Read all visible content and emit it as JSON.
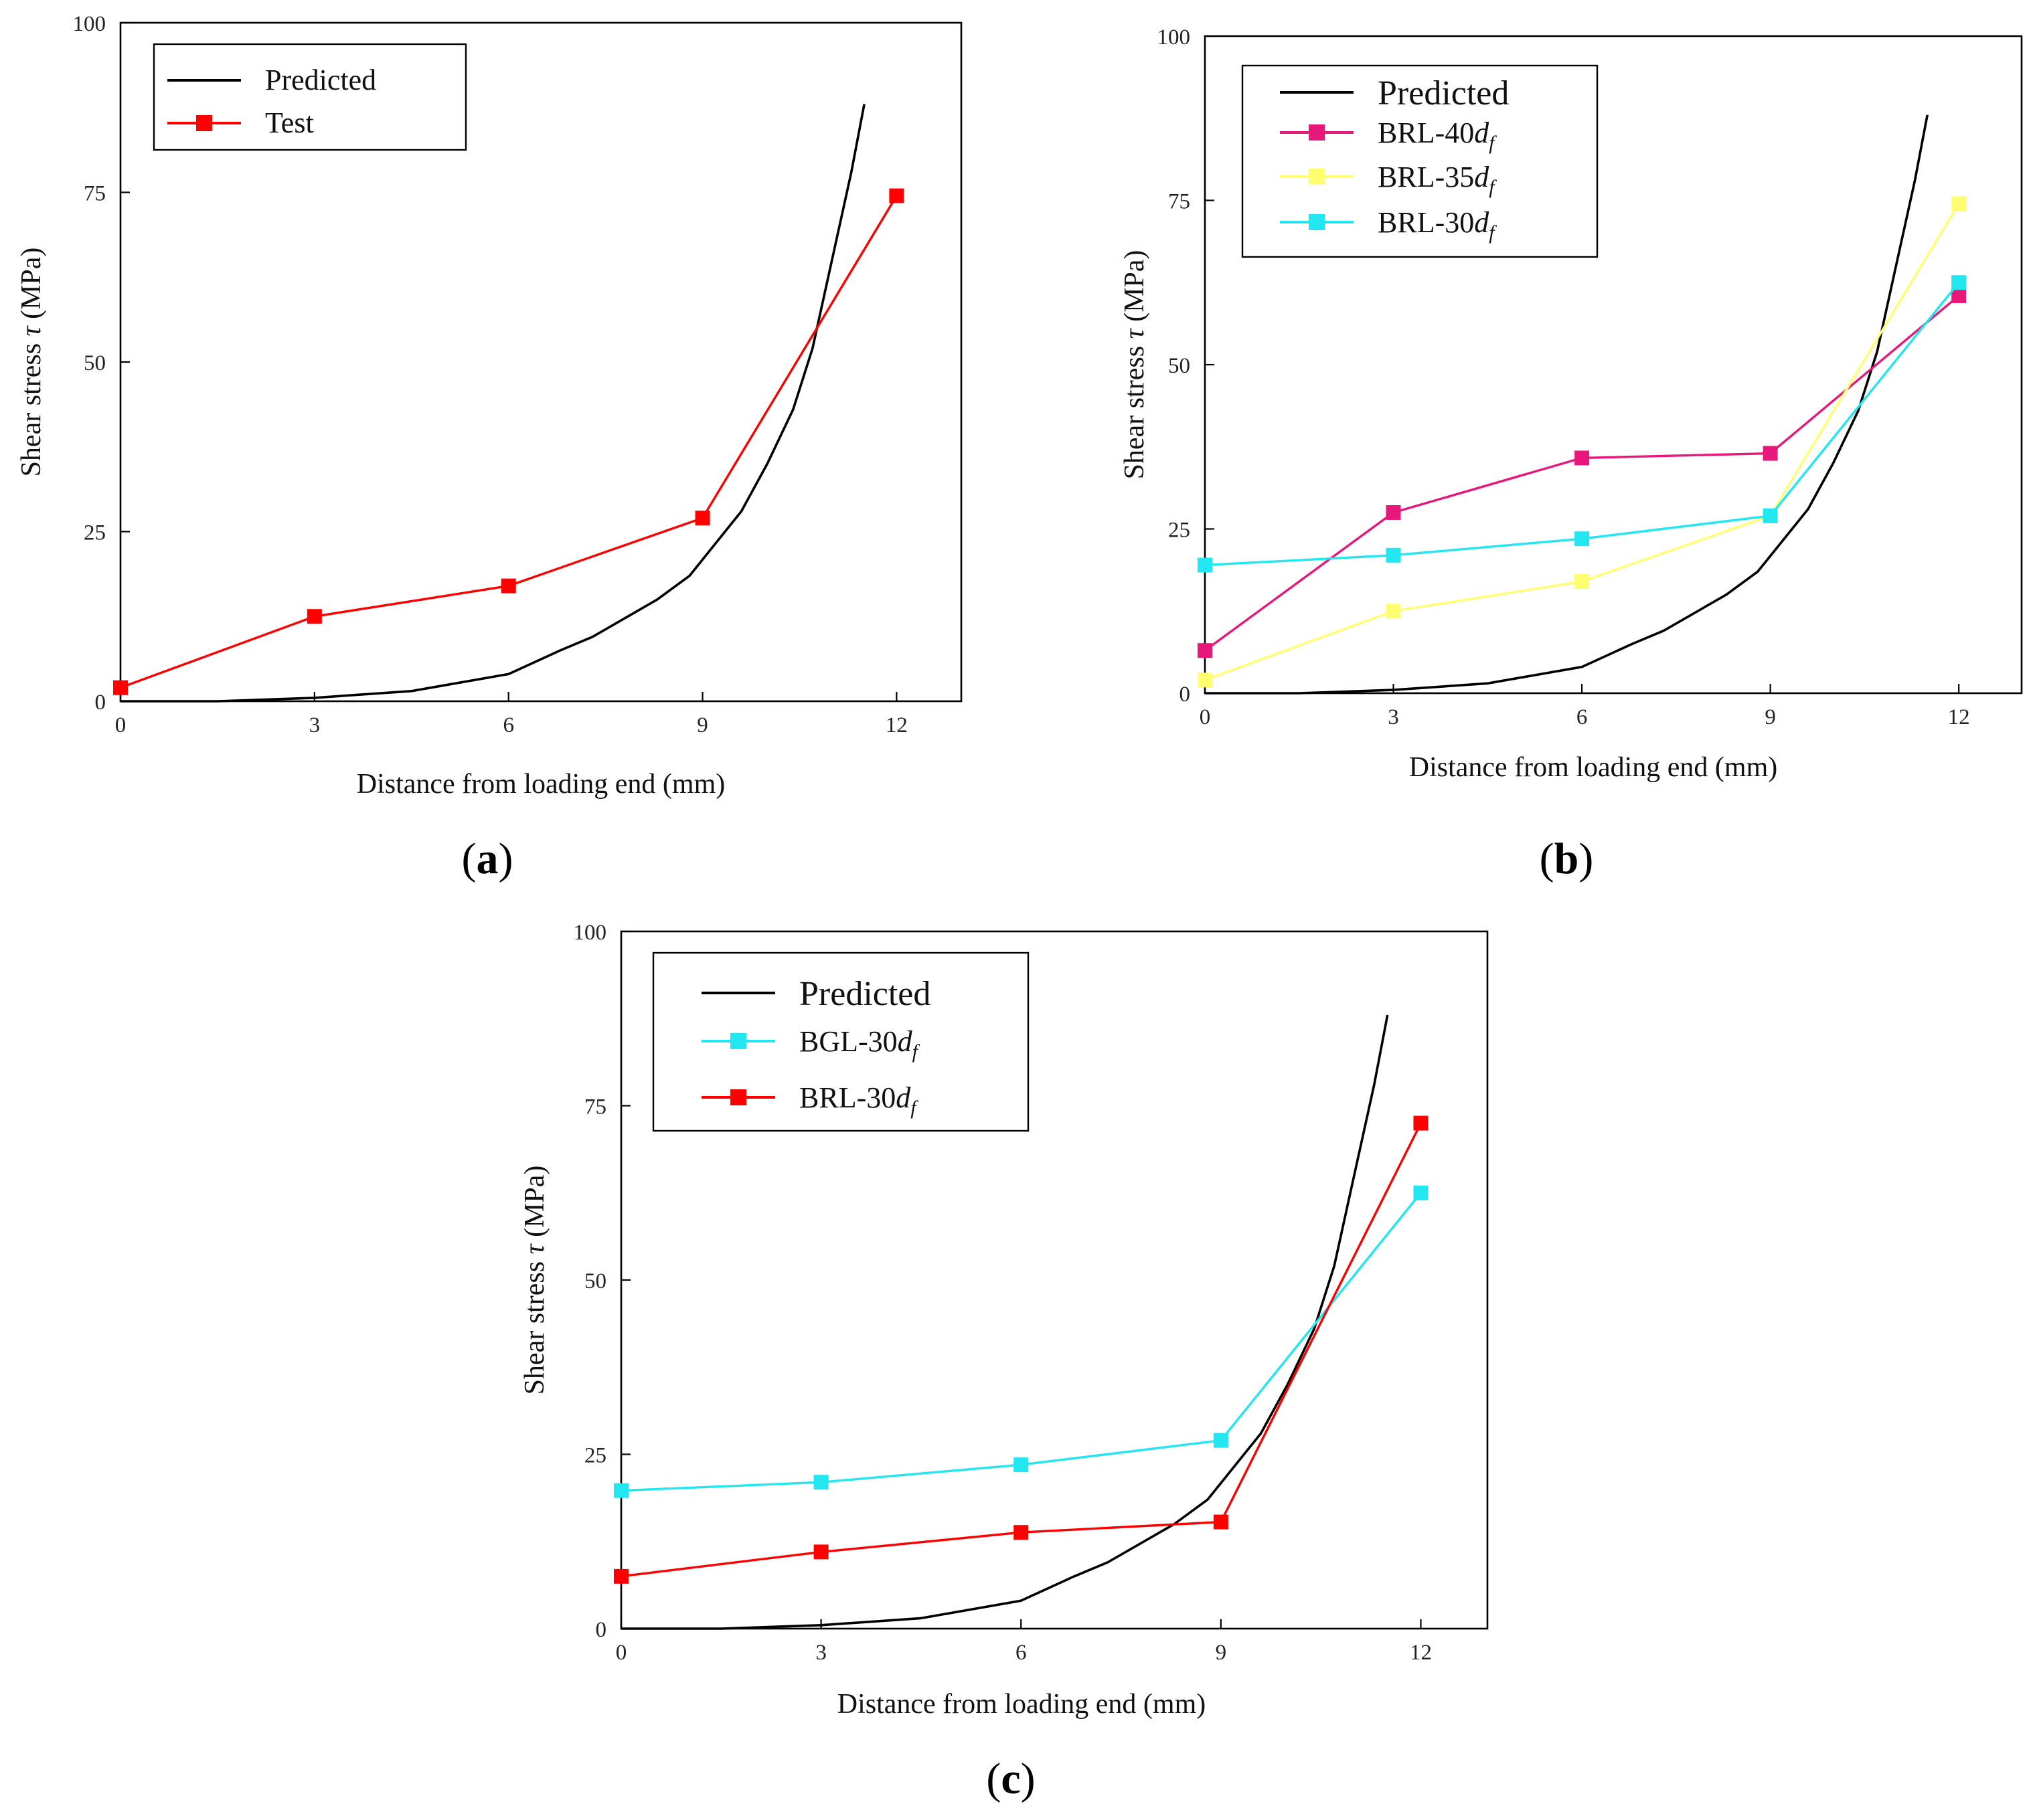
{
  "chart_data": [
    {
      "panel": "a",
      "caption": "a",
      "type": "line",
      "xlabel": "Distance from loading end (mm)",
      "ylabel_prefix": "Shear stress ",
      "ylabel_symbol": "τ",
      "ylabel_suffix": " (MPa)",
      "xlim": [
        0,
        13
      ],
      "ylim": [
        0,
        100
      ],
      "xticks": [
        0,
        3,
        6,
        9,
        12
      ],
      "yticks": [
        0,
        25,
        50,
        75,
        100
      ],
      "legend_position": "top-left",
      "series": [
        {
          "name": "Predicted",
          "color": "#000000",
          "marker": "none",
          "x": [
            0,
            1.5,
            3,
            4.5,
            6,
            6.8,
            7.3,
            8.3,
            8.8,
            9.6,
            10.0,
            10.4,
            10.7,
            11.0,
            11.3,
            11.5
          ],
          "y": [
            0,
            0,
            0.5,
            1.5,
            4,
            7.5,
            9.5,
            15,
            18.5,
            28,
            35,
            43,
            52,
            65,
            78,
            88
          ]
        },
        {
          "name": "Test",
          "color": "#ff0000",
          "marker": "square",
          "x": [
            0,
            3,
            6,
            9,
            12
          ],
          "y": [
            2,
            12.5,
            17,
            27,
            74.5
          ]
        }
      ]
    },
    {
      "panel": "b",
      "caption": "b",
      "type": "line",
      "xlabel": "Distance from loading end (mm)",
      "ylabel_prefix": "Shear stress ",
      "ylabel_symbol": "τ",
      "ylabel_suffix": " (MPa)",
      "xlim": [
        0,
        13
      ],
      "ylim": [
        0,
        100
      ],
      "xticks": [
        0,
        3,
        6,
        9,
        12
      ],
      "yticks": [
        0,
        25,
        50,
        75,
        100
      ],
      "legend_position": "top-left",
      "series": [
        {
          "name": "Predicted",
          "color": "#000000",
          "marker": "none",
          "x": [
            0,
            1.5,
            3,
            4.5,
            6,
            6.8,
            7.3,
            8.3,
            8.8,
            9.6,
            10.0,
            10.4,
            10.7,
            11.0,
            11.3,
            11.5
          ],
          "y": [
            0,
            0,
            0.5,
            1.5,
            4,
            7.5,
            9.5,
            15,
            18.5,
            28,
            35,
            43,
            52,
            65,
            78,
            88
          ]
        },
        {
          "name": "BRL-40",
          "subscript_var": "d",
          "subscript": "f",
          "color": "#e8177a",
          "marker": "square",
          "x": [
            0,
            3,
            6,
            9,
            12
          ],
          "y": [
            6.5,
            27.5,
            35.8,
            36.5,
            60.5
          ]
        },
        {
          "name": "BRL-35",
          "subscript_var": "d",
          "subscript": "f",
          "color": "#ffff70",
          "marker": "square",
          "x": [
            0,
            3,
            6,
            9,
            12
          ],
          "y": [
            2,
            12.5,
            17,
            27,
            74.5
          ]
        },
        {
          "name": "BRL-30",
          "subscript_var": "d",
          "subscript": "f",
          "color": "#22e6f0",
          "marker": "square",
          "x": [
            0,
            3,
            6,
            9,
            12
          ],
          "y": [
            19.5,
            21,
            23.5,
            27,
            62.5
          ]
        }
      ]
    },
    {
      "panel": "c",
      "caption": "c",
      "type": "line",
      "xlabel": "Distance from loading end (mm)",
      "ylabel_prefix": "Shear stress ",
      "ylabel_symbol": "τ",
      "ylabel_suffix": " (MPa)",
      "xlim": [
        0,
        13
      ],
      "ylim": [
        0,
        100
      ],
      "xticks": [
        0,
        3,
        6,
        9,
        12
      ],
      "yticks": [
        0,
        25,
        50,
        75,
        100
      ],
      "legend_position": "top-left",
      "series": [
        {
          "name": "Predicted",
          "color": "#000000",
          "marker": "none",
          "x": [
            0,
            1.5,
            3,
            4.5,
            6,
            6.8,
            7.3,
            8.3,
            8.8,
            9.6,
            10.0,
            10.4,
            10.7,
            11.0,
            11.3,
            11.5
          ],
          "y": [
            0,
            0,
            0.5,
            1.5,
            4,
            7.5,
            9.5,
            15,
            18.5,
            28,
            35,
            43,
            52,
            65,
            78,
            88
          ]
        },
        {
          "name": "BGL-30",
          "subscript_var": "d",
          "subscript": "f",
          "color": "#22e6f0",
          "marker": "square",
          "x": [
            0,
            3,
            6,
            9,
            12
          ],
          "y": [
            19.8,
            21,
            23.5,
            27,
            62.5
          ]
        },
        {
          "name": "BRL-30",
          "subscript_var": "d",
          "subscript": "f",
          "color": "#ff0000",
          "marker": "square",
          "x": [
            0,
            3,
            6,
            9,
            12
          ],
          "y": [
            7.5,
            11,
            13.8,
            15.3,
            72.5
          ]
        }
      ]
    }
  ]
}
